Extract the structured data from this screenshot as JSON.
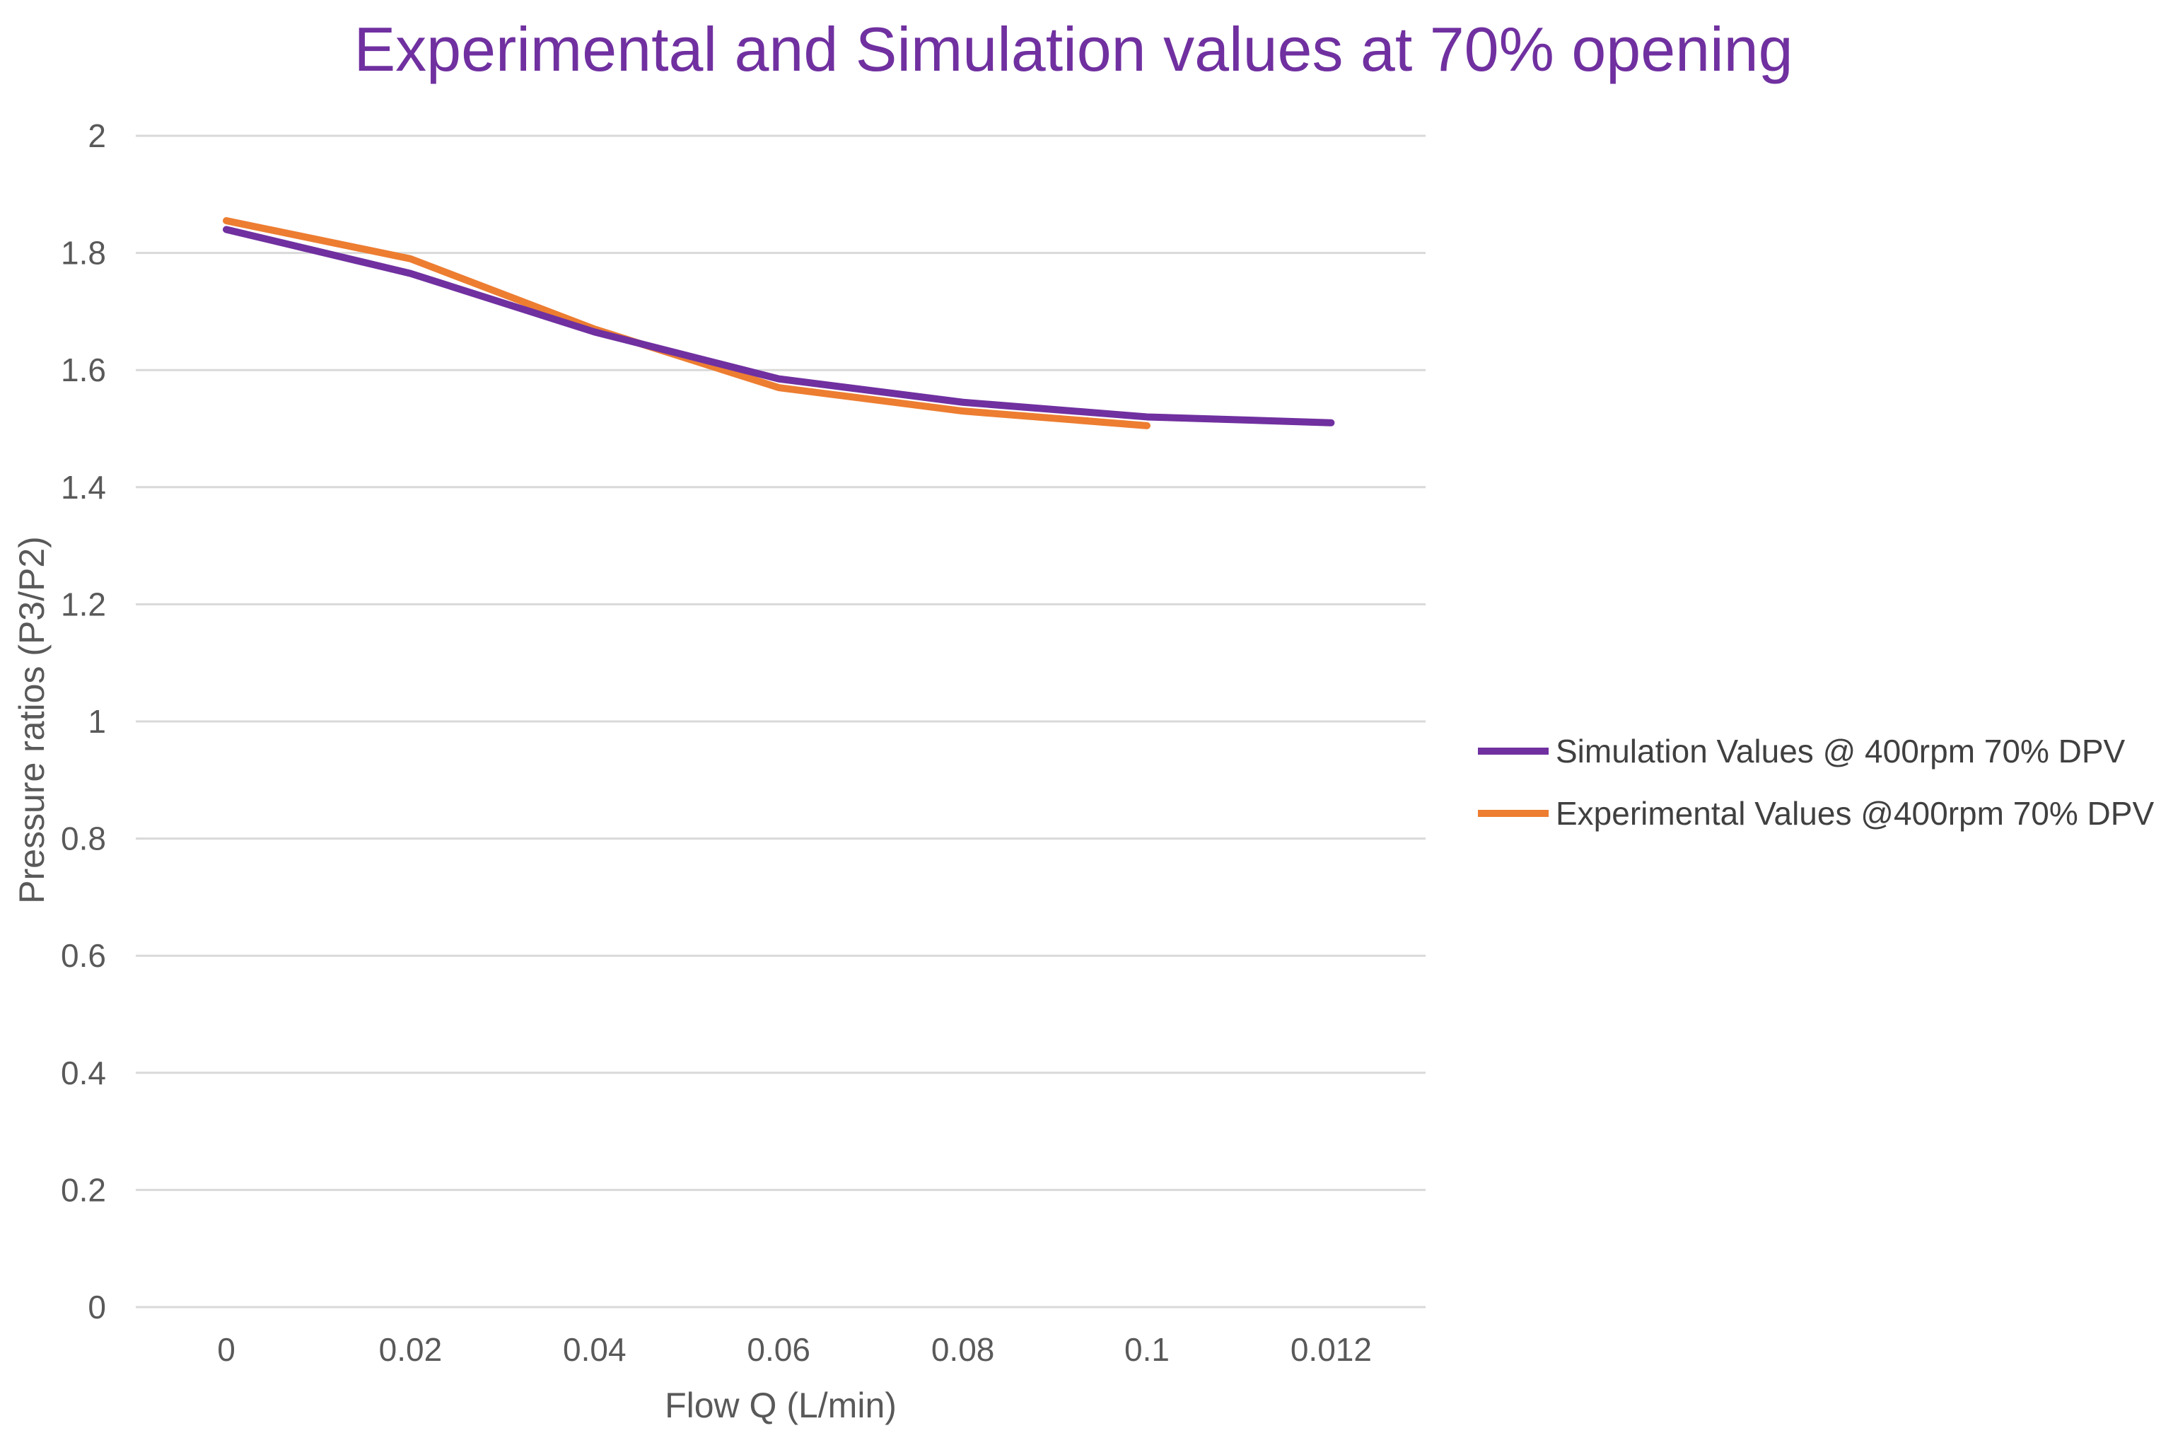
{
  "chart_data": {
    "type": "line",
    "title": "Experimental and Simulation values at 70% opening",
    "xlabel": "Flow Q (L/min)",
    "ylabel": "Pressure ratios (P3/P2)",
    "categories": [
      "0",
      "0.02",
      "0.04",
      "0.06",
      "0.08",
      "0.1",
      "0.012"
    ],
    "ylim": [
      0,
      2
    ],
    "yticks": [
      "0",
      "0.2",
      "0.4",
      "0.6",
      "0.8",
      "1",
      "1.2",
      "1.4",
      "1.6",
      "1.8",
      "2"
    ],
    "grid": true,
    "legend_position": "right",
    "series": [
      {
        "name": "Simulation Values @ 400rpm 70% DPV",
        "color": "#7030a0",
        "values": [
          1.84,
          1.765,
          1.665,
          1.585,
          1.545,
          1.52,
          1.51
        ]
      },
      {
        "name": "Experimental Values @400rpm 70% DPV",
        "color": "#ed7d31",
        "values": [
          1.855,
          1.79,
          1.67,
          1.57,
          1.53,
          1.505,
          null
        ]
      }
    ]
  }
}
